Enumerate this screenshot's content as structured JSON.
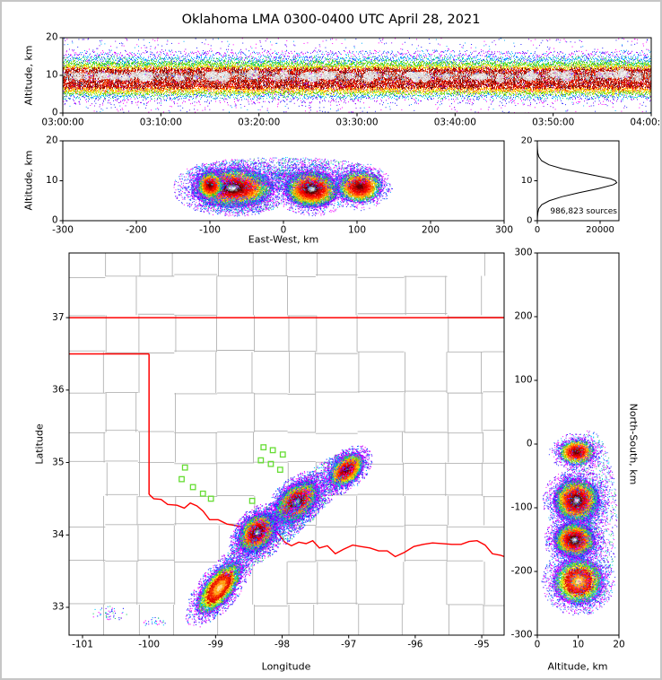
{
  "title": "Oklahoma LMA 0300-0400 UTC April 28, 2021",
  "colors": {
    "state_border": "#ff0000",
    "county_line": "#b3b3b3",
    "station_marker": "#66dd33",
    "histogram_line": "#000000",
    "axis": "#000000"
  },
  "chart_data": [
    {
      "id": "time_height",
      "type": "heatmap",
      "ylabel": "Altitude, km",
      "ylim": [
        0,
        20
      ],
      "yticks": [
        0,
        10,
        20
      ],
      "xticks": [
        "03:00:00",
        "03:10:00",
        "03:20:00",
        "03:30:00",
        "03:40:00",
        "03:50:00",
        "04:00:00"
      ],
      "x_range_utc": [
        "03:00:00",
        "04:00:00"
      ],
      "band": {
        "description": "continuous lightning source band for full hour",
        "main_km": [
          6.6,
          11.9
        ],
        "top_fringe_km": 16.6,
        "bottom_fringe_km": 2.6,
        "gray_core_center_km": 9.9,
        "white_patch_count": 48,
        "outlier_points": 1600
      }
    },
    {
      "id": "east_west",
      "type": "heatmap",
      "xlabel": "East-West, km",
      "ylabel": "Altitude, km",
      "xlim": [
        -300,
        300
      ],
      "ylim": [
        0,
        20
      ],
      "xticks": [
        -300,
        -200,
        -100,
        0,
        100,
        200,
        300
      ],
      "yticks": [
        0,
        10,
        20
      ],
      "clusters": [
        {
          "cx": -70,
          "cy": 8.3,
          "rx": 55,
          "ry": 4.8,
          "rot": 0,
          "n": 8000,
          "core": "white"
        },
        {
          "cx": -100,
          "cy": 9.0,
          "rx": 18,
          "ry": 3.5,
          "rot": 0,
          "n": 1800,
          "core": "red"
        },
        {
          "cx": 38,
          "cy": 8.0,
          "rx": 36,
          "ry": 4.5,
          "rot": 0,
          "n": 6000,
          "core": "white"
        },
        {
          "cx": 103,
          "cy": 8.6,
          "rx": 30,
          "ry": 4.0,
          "rot": 0,
          "n": 3200,
          "core": "red"
        },
        {
          "cx": 0,
          "cy": 11.8,
          "rx": 132,
          "ry": 4.2,
          "rot": 0,
          "n": 2400,
          "core": "speckle"
        },
        {
          "cx": -60,
          "cy": 4.2,
          "rx": 55,
          "ry": 2.2,
          "rot": 0,
          "n": 700,
          "core": "speckle"
        }
      ]
    },
    {
      "id": "source_histogram",
      "type": "line",
      "annotation": "986,823 sources",
      "xlim": [
        0,
        26000
      ],
      "ylim": [
        0,
        20
      ],
      "xticks": [
        0,
        20000
      ],
      "yticks": [
        0,
        10,
        20
      ],
      "profile_alt_km": [
        0,
        1,
        2,
        3,
        4,
        5,
        6,
        7,
        8,
        9,
        9.5,
        10,
        10.5,
        11,
        12,
        13,
        14,
        15,
        16,
        17,
        18,
        19,
        20
      ],
      "profile_count": [
        0,
        60,
        180,
        450,
        1400,
        3800,
        7800,
        13200,
        19300,
        24200,
        25300,
        24900,
        23400,
        20300,
        14200,
        8000,
        3700,
        1400,
        480,
        150,
        50,
        10,
        0
      ]
    },
    {
      "id": "plan_view",
      "type": "map-heatmap",
      "xlabel": "Longitude",
      "ylabel": "Latitude",
      "xlim": [
        -101.202,
        -94.664
      ],
      "ylim": [
        32.616,
        37.893
      ],
      "xticks": [
        -101,
        -100,
        -99,
        -98,
        -97,
        -96,
        -95
      ],
      "yticks": [
        33,
        34,
        35,
        36,
        37
      ],
      "state_border": {
        "north_lat": 37.0,
        "panhandle_south_lat": 36.5,
        "west_lon": -100.0,
        "west_border_lat_range": [
          34.56,
          36.5
        ],
        "red_river": [
          [
            -100.0,
            34.56
          ],
          [
            -99.93,
            34.5
          ],
          [
            -99.82,
            34.49
          ],
          [
            -99.72,
            34.42
          ],
          [
            -99.58,
            34.41
          ],
          [
            -99.47,
            34.37
          ],
          [
            -99.38,
            34.44
          ],
          [
            -99.28,
            34.4
          ],
          [
            -99.19,
            34.33
          ],
          [
            -99.09,
            34.21
          ],
          [
            -98.96,
            34.21
          ],
          [
            -98.83,
            34.15
          ],
          [
            -98.7,
            34.13
          ],
          [
            -98.58,
            34.11
          ],
          [
            -98.46,
            34.06
          ],
          [
            -98.37,
            34.12
          ],
          [
            -98.26,
            34.12
          ],
          [
            -98.15,
            34.1
          ],
          [
            -98.06,
            34.02
          ],
          [
            -97.96,
            33.9
          ],
          [
            -97.86,
            33.85
          ],
          [
            -97.75,
            33.9
          ],
          [
            -97.64,
            33.88
          ],
          [
            -97.54,
            33.92
          ],
          [
            -97.44,
            33.82
          ],
          [
            -97.32,
            33.85
          ],
          [
            -97.2,
            33.74
          ],
          [
            -97.08,
            33.8
          ],
          [
            -96.94,
            33.86
          ],
          [
            -96.82,
            33.84
          ],
          [
            -96.68,
            33.82
          ],
          [
            -96.55,
            33.78
          ],
          [
            -96.42,
            33.78
          ],
          [
            -96.3,
            33.7
          ],
          [
            -96.16,
            33.76
          ],
          [
            -96.02,
            33.84
          ],
          [
            -95.88,
            33.87
          ],
          [
            -95.74,
            33.89
          ],
          [
            -95.6,
            33.88
          ],
          [
            -95.45,
            33.87
          ],
          [
            -95.31,
            33.87
          ],
          [
            -95.19,
            33.91
          ],
          [
            -95.07,
            33.92
          ],
          [
            -94.95,
            33.86
          ],
          [
            -94.84,
            33.74
          ],
          [
            -94.72,
            33.72
          ],
          [
            -94.6,
            33.68
          ]
        ]
      },
      "stations": [
        [
          -99.46,
          34.93
        ],
        [
          -99.51,
          34.77
        ],
        [
          -99.34,
          34.66
        ],
        [
          -99.19,
          34.57
        ],
        [
          -99.07,
          34.5
        ],
        [
          -98.28,
          35.21
        ],
        [
          -98.14,
          35.17
        ],
        [
          -98.32,
          35.03
        ],
        [
          -98.17,
          34.98
        ],
        [
          -97.99,
          35.11
        ],
        [
          -98.03,
          34.9
        ],
        [
          -98.45,
          34.47
        ]
      ],
      "clusters": [
        {
          "cx": -98.95,
          "cy": 33.28,
          "rx": 0.46,
          "ry": 0.2,
          "rot": 48,
          "n": 5200,
          "core": "orange"
        },
        {
          "cx": -98.38,
          "cy": 34.04,
          "rx": 0.32,
          "ry": 0.22,
          "rot": 40,
          "n": 6800,
          "core": "white"
        },
        {
          "cx": -97.79,
          "cy": 34.46,
          "rx": 0.38,
          "ry": 0.22,
          "rot": 38,
          "n": 6800,
          "core": "white"
        },
        {
          "cx": -97.04,
          "cy": 34.9,
          "rx": 0.3,
          "ry": 0.18,
          "rot": 38,
          "n": 4200,
          "core": "red"
        },
        {
          "cx": -97.9,
          "cy": 34.3,
          "rx": 1.3,
          "ry": 0.3,
          "rot": 40,
          "n": 2600,
          "core": "speckle"
        },
        {
          "cx": -100.6,
          "cy": 32.92,
          "rx": 0.3,
          "ry": 0.1,
          "rot": 0,
          "n": 50,
          "core": "speckle"
        },
        {
          "cx": -99.92,
          "cy": 32.8,
          "rx": 0.18,
          "ry": 0.07,
          "rot": 0,
          "n": 30,
          "core": "speckle"
        }
      ]
    },
    {
      "id": "north_south",
      "type": "heatmap",
      "xlabel": "Altitude, km",
      "ylabel": "North-South, km",
      "xlim": [
        0,
        20
      ],
      "ylim": [
        -300,
        300
      ],
      "xticks": [
        0,
        10,
        20
      ],
      "yticks": [
        300,
        200,
        100,
        0,
        -100,
        -200,
        -300
      ],
      "clusters": [
        {
          "cx": 9.5,
          "cy": -12,
          "rx": 4.5,
          "ry": 20,
          "rot": 0,
          "n": 2200,
          "core": "red"
        },
        {
          "cx": 9.5,
          "cy": -88,
          "rx": 5.5,
          "ry": 34,
          "rot": 0,
          "n": 6800,
          "core": "white"
        },
        {
          "cx": 9.0,
          "cy": -150,
          "rx": 5.0,
          "ry": 27,
          "rot": 0,
          "n": 5600,
          "core": "white"
        },
        {
          "cx": 10.0,
          "cy": -215,
          "rx": 6.0,
          "ry": 36,
          "rot": 0,
          "n": 6500,
          "core": "orange"
        },
        {
          "cx": 12.5,
          "cy": -120,
          "rx": 7.0,
          "ry": 142,
          "rot": 0,
          "n": 2000,
          "core": "speckle"
        }
      ]
    }
  ]
}
